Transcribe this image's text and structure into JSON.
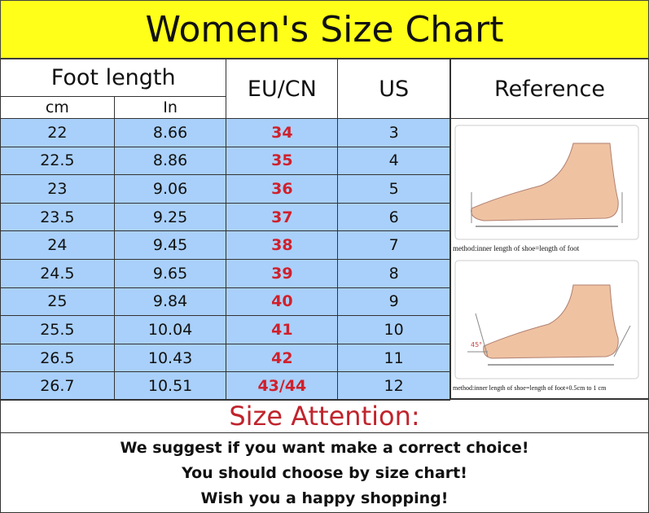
{
  "title": "Women's Size Chart",
  "headers": {
    "foot_length": "Foot length",
    "cm": "cm",
    "in": "In",
    "eu_cn": "EU/CN",
    "us": "US",
    "reference": "Reference"
  },
  "rows": [
    {
      "cm": "22",
      "in": "8.66",
      "eu": "34",
      "us": "3"
    },
    {
      "cm": "22.5",
      "in": "8.86",
      "eu": "35",
      "us": "4"
    },
    {
      "cm": "23",
      "in": "9.06",
      "eu": "36",
      "us": "5"
    },
    {
      "cm": "23.5",
      "in": "9.25",
      "eu": "37",
      "us": "6"
    },
    {
      "cm": "24",
      "in": "9.45",
      "eu": "38",
      "us": "7"
    },
    {
      "cm": "24.5",
      "in": "9.65",
      "eu": "39",
      "us": "8"
    },
    {
      "cm": "25",
      "in": "9.84",
      "eu": "40",
      "us": "9"
    },
    {
      "cm": "25.5",
      "in": "10.04",
      "eu": "41",
      "us": "10"
    },
    {
      "cm": "26.5",
      "in": "10.43",
      "eu": "42",
      "us": "11"
    },
    {
      "cm": "26.7",
      "in": "10.51",
      "eu": "43/44",
      "us": "12"
    }
  ],
  "reference": {
    "caption1": "method:inner length of shoe=length of foot",
    "caption2": "method:inner length of shoe=length of foot+0.5cm to 1 cm",
    "angle": "45°"
  },
  "attention": {
    "title": "Size Attention:",
    "lines": [
      "We suggest if you want make a correct choice!",
      "You should choose by size chart!",
      "Wish you a happy shopping!"
    ]
  },
  "colors": {
    "title_bg": "#ffff1a",
    "row_bg": "#a9d0fa",
    "eu_text": "#d0202c",
    "attention_text": "#c0242c"
  }
}
